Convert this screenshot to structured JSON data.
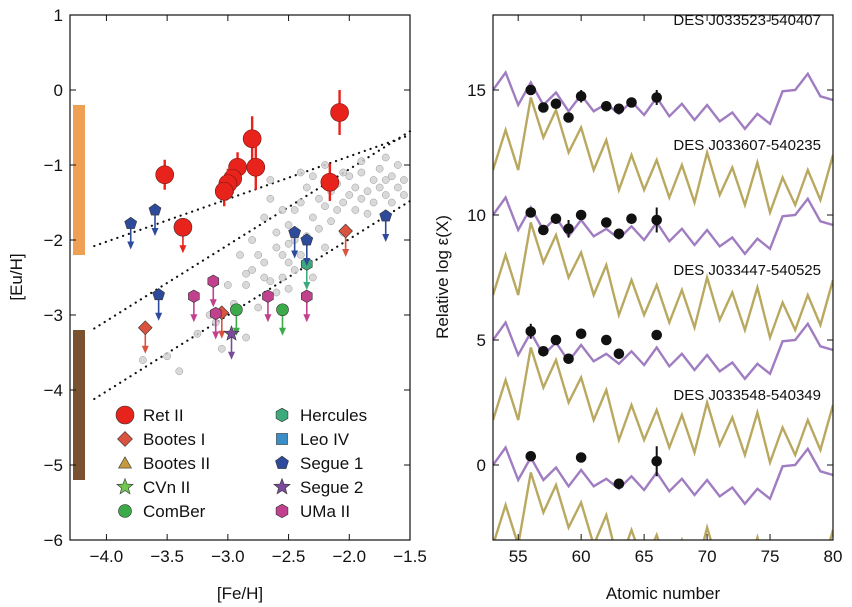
{
  "chart_data": [
    {
      "type": "scatter",
      "xlabel": "[Fe/H]",
      "ylabel": "[Eu/H]",
      "xlim": [
        -4.3,
        -1.5
      ],
      "ylim": [
        -6,
        1
      ],
      "xticks": [
        -4.0,
        -3.5,
        -3.0,
        -2.5,
        -2.0,
        -1.5
      ],
      "xtick_labels": [
        "−4.0",
        "−3.5",
        "−3.0",
        "−2.5",
        "−2.0",
        "−1.5"
      ],
      "yticks": [
        1,
        0,
        -1,
        -2,
        -3,
        -4,
        -5,
        -6
      ],
      "ytick_labels": [
        "1",
        "0",
        "−1",
        "−2",
        "−3",
        "−4",
        "−5",
        "−6"
      ],
      "legend": {
        "placement": "lower-left",
        "columns": [
          [
            "Ret II",
            "Bootes I",
            "Bootes II",
            "CVn II",
            "ComBer"
          ],
          [
            "Hercules",
            "Leo IV",
            "Segue 1",
            "Segue 2",
            "UMa II"
          ]
        ]
      },
      "colors": {
        "Ret II": "#e8231c",
        "Bootes I": "#d9533f",
        "Bootes II": "#c59a3e",
        "CVn II": "#6fc74f",
        "ComBer": "#3daa4a",
        "Hercules": "#3bab7c",
        "Leo IV": "#3b8fc9",
        "Segue 1": "#2e4a9b",
        "Segue 2": "#7a4b9a",
        "UMa II": "#c2418f",
        "halo": "#bdbdbd",
        "band_top": "#f0a055",
        "band_bottom": "#7a5230"
      },
      "bands": [
        {
          "y": [
            -2.2,
            -0.2
          ],
          "color": "#f0a055"
        },
        {
          "y": [
            -5.2,
            -3.2
          ],
          "color": "#7a5230"
        }
      ],
      "trend_lines": [
        {
          "x": [
            -4.1,
            -1.5
          ],
          "y": [
            -2.08,
            -0.6
          ]
        },
        {
          "x": [
            -4.1,
            -1.5
          ],
          "y": [
            -3.18,
            -0.55
          ]
        },
        {
          "x": [
            -4.1,
            -1.5
          ],
          "y": [
            -4.12,
            -1.48
          ]
        }
      ],
      "series": [
        {
          "name": "Ret II",
          "marker": "circle",
          "color": "#e8231c",
          "detections": [
            {
              "x": -2.08,
              "y": -0.3,
              "yerr": 0.3
            },
            {
              "x": -2.8,
              "y": -0.65,
              "yerr": 0.3
            },
            {
              "x": -2.77,
              "y": -1.03,
              "yerr": 0.3
            },
            {
              "x": -2.92,
              "y": -1.03,
              "yerr": 0.2
            },
            {
              "x": -2.96,
              "y": -1.18,
              "yerr": 0.2
            },
            {
              "x": -3.0,
              "y": -1.25,
              "yerr": 0.2
            },
            {
              "x": -3.03,
              "y": -1.35,
              "yerr": 0.2
            },
            {
              "x": -2.16,
              "y": -1.23,
              "yerr": 0.25
            },
            {
              "x": -3.52,
              "y": -1.13,
              "yerr": 0.2
            }
          ],
          "upper_limits": [
            {
              "x": -3.37,
              "y": -1.83
            }
          ]
        },
        {
          "name": "Bootes I",
          "marker": "diamond",
          "color": "#d9533f",
          "detections": [],
          "upper_limits": [
            {
              "x": -3.05,
              "y": -2.97
            },
            {
              "x": -3.68,
              "y": -3.17
            },
            {
              "x": -2.03,
              "y": -1.88
            }
          ]
        },
        {
          "name": "Bootes II",
          "marker": "triangle",
          "color": "#c59a3e",
          "detections": [],
          "upper_limits": []
        },
        {
          "name": "CVn II",
          "marker": "star",
          "color": "#6fc74f",
          "detections": [],
          "upper_limits": []
        },
        {
          "name": "ComBer",
          "marker": "circle",
          "color": "#3daa4a",
          "detections": [],
          "upper_limits": [
            {
              "x": -2.93,
              "y": -2.93
            },
            {
              "x": -2.55,
              "y": -2.93
            }
          ]
        },
        {
          "name": "Hercules",
          "marker": "hexagon",
          "color": "#3bab7c",
          "detections": [],
          "upper_limits": [
            {
              "x": -2.35,
              "y": -2.32
            }
          ]
        },
        {
          "name": "Leo IV",
          "marker": "square",
          "color": "#3b8fc9",
          "detections": [],
          "upper_limits": []
        },
        {
          "name": "Segue 1",
          "marker": "pentagon",
          "color": "#2e4a9b",
          "detections": [],
          "upper_limits": [
            {
              "x": -3.8,
              "y": -1.78
            },
            {
              "x": -3.6,
              "y": -1.6
            },
            {
              "x": -3.57,
              "y": -2.73
            },
            {
              "x": -2.45,
              "y": -1.9
            },
            {
              "x": -2.35,
              "y": -2.0
            },
            {
              "x": -1.7,
              "y": -1.68
            }
          ]
        },
        {
          "name": "Segue 2",
          "marker": "star",
          "color": "#7a4b9a",
          "detections": [],
          "upper_limits": [
            {
              "x": -2.97,
              "y": -3.25
            }
          ]
        },
        {
          "name": "UMa II",
          "marker": "hexagon",
          "color": "#c2418f",
          "detections": [],
          "upper_limits": [
            {
              "x": -3.28,
              "y": -2.75
            },
            {
              "x": -3.12,
              "y": -2.55
            },
            {
              "x": -3.1,
              "y": -2.98
            },
            {
              "x": -2.67,
              "y": -2.75
            },
            {
              "x": -2.35,
              "y": -2.75
            }
          ]
        },
        {
          "name": "",
          "marker": "circle",
          "color": "#bdbdbd",
          "points": [
            [
              -3.7,
              -3.6
            ],
            [
              -3.5,
              -3.55
            ],
            [
              -3.4,
              -3.75
            ],
            [
              -3.25,
              -3.25
            ],
            [
              -3.1,
              -3.1
            ],
            [
              -3.05,
              -3.45
            ],
            [
              -2.95,
              -2.85
            ],
            [
              -2.85,
              -2.6
            ],
            [
              -2.85,
              -3.3
            ],
            [
              -2.8,
              -2.4
            ],
            [
              -2.75,
              -2.2
            ],
            [
              -2.7,
              -1.7
            ],
            [
              -2.7,
              -2.3
            ],
            [
              -2.65,
              -2.55
            ],
            [
              -2.65,
              -1.45
            ],
            [
              -2.6,
              -2.1
            ],
            [
              -2.6,
              -1.9
            ],
            [
              -2.55,
              -2.5
            ],
            [
              -2.55,
              -1.6
            ],
            [
              -2.5,
              -2.3
            ],
            [
              -2.5,
              -1.8
            ],
            [
              -2.5,
              -2.05
            ],
            [
              -2.45,
              -2.4
            ],
            [
              -2.45,
              -1.6
            ],
            [
              -2.4,
              -2.2
            ],
            [
              -2.4,
              -1.5
            ],
            [
              -2.35,
              -1.95
            ],
            [
              -2.35,
              -1.3
            ],
            [
              -2.3,
              -2.5
            ],
            [
              -2.3,
              -1.7
            ],
            [
              -2.25,
              -1.85
            ],
            [
              -2.25,
              -1.45
            ],
            [
              -2.2,
              -1.55
            ],
            [
              -2.2,
              -2.1
            ],
            [
              -2.15,
              -1.35
            ],
            [
              -2.15,
              -1.75
            ],
            [
              -2.1,
              -1.6
            ],
            [
              -2.1,
              -1.25
            ],
            [
              -2.05,
              -1.5
            ],
            [
              -2.05,
              -1.9
            ],
            [
              -2.0,
              -1.4
            ],
            [
              -2.0,
              -1.15
            ],
            [
              -1.95,
              -1.6
            ],
            [
              -1.95,
              -1.3
            ],
            [
              -1.9,
              -1.45
            ],
            [
              -1.9,
              -1.1
            ],
            [
              -1.85,
              -1.35
            ],
            [
              -1.85,
              -1.65
            ],
            [
              -1.8,
              -1.2
            ],
            [
              -1.8,
              -1.5
            ],
            [
              -1.75,
              -1.3
            ],
            [
              -1.75,
              -1.05
            ],
            [
              -1.7,
              -1.4
            ],
            [
              -1.7,
              -1.2
            ],
            [
              -1.65,
              -1.15
            ],
            [
              -1.65,
              -1.5
            ],
            [
              -1.6,
              -1.3
            ],
            [
              -1.6,
              -1.0
            ],
            [
              -1.55,
              -1.2
            ],
            [
              -1.55,
              -1.4
            ],
            [
              -2.6,
              -2.7
            ],
            [
              -2.8,
              -2.0
            ],
            [
              -2.9,
              -2.2
            ],
            [
              -3.0,
              -2.6
            ],
            [
              -2.75,
              -2.9
            ],
            [
              -2.5,
              -2.65
            ],
            [
              -3.15,
              -3.0
            ],
            [
              -2.65,
              -1.2
            ],
            [
              -2.4,
              -1.1
            ],
            [
              -2.3,
              -1.15
            ],
            [
              -2.55,
              -2.2
            ],
            [
              -2.45,
              -2.0
            ],
            [
              -2.2,
              -1.0
            ],
            [
              -2.05,
              -1.1
            ],
            [
              -1.9,
              -0.95
            ],
            [
              -1.7,
              -0.9
            ],
            [
              -2.85,
              -2.45
            ],
            [
              -2.7,
              -2.5
            ]
          ]
        }
      ]
    },
    {
      "type": "line",
      "xlabel": "Atomic number",
      "ylabel": "Relative log ε(X)",
      "xlim": [
        53,
        80
      ],
      "ylim": [
        -3,
        18
      ],
      "xticks": [
        55,
        60,
        65,
        70,
        75,
        80
      ],
      "yticks": [
        0,
        5,
        10,
        15
      ],
      "line_colors": {
        "r-process": "#a07cc0",
        "s-process": "#b9a860",
        "stars": "#111111"
      },
      "r_process_pattern": [
        [
          53,
          0.0
        ],
        [
          54,
          0.7
        ],
        [
          55,
          -0.6
        ],
        [
          56,
          0.3
        ],
        [
          57,
          -0.6
        ],
        [
          58,
          -0.1
        ],
        [
          59,
          -0.85
        ],
        [
          60,
          -0.2
        ],
        [
          61,
          -0.85
        ],
        [
          62,
          -0.55
        ],
        [
          63,
          -0.95
        ],
        [
          64,
          -0.45
        ],
        [
          65,
          -1.0
        ],
        [
          66,
          -0.3
        ],
        [
          67,
          -1.05
        ],
        [
          68,
          -0.55
        ],
        [
          69,
          -1.2
        ],
        [
          70,
          -0.6
        ],
        [
          71,
          -1.25
        ],
        [
          72,
          -0.9
        ],
        [
          73,
          -1.55
        ],
        [
          74,
          -0.95
        ],
        [
          75,
          -1.35
        ],
        [
          76,
          -0.05
        ],
        [
          77,
          0.0
        ],
        [
          78,
          0.65
        ],
        [
          79,
          -0.25
        ],
        [
          80,
          -0.4
        ]
      ],
      "s_process_pattern": [
        [
          53,
          -3.2
        ],
        [
          54,
          -1.6
        ],
        [
          55,
          -3.2
        ],
        [
          56,
          -0.3
        ],
        [
          57,
          -1.9
        ],
        [
          58,
          -0.8
        ],
        [
          59,
          -2.5
        ],
        [
          60,
          -1.5
        ],
        [
          61,
          -3.2
        ],
        [
          62,
          -2.0
        ],
        [
          63,
          -4.0
        ],
        [
          64,
          -2.6
        ],
        [
          65,
          -4.0
        ],
        [
          66,
          -2.8
        ],
        [
          67,
          -4.3
        ],
        [
          68,
          -3.0
        ],
        [
          69,
          -4.5
        ],
        [
          70,
          -2.5
        ],
        [
          71,
          -4.2
        ],
        [
          72,
          -3.1
        ],
        [
          73,
          -4.6
        ],
        [
          74,
          -2.9
        ],
        [
          75,
          -4.9
        ],
        [
          76,
          -3.5
        ],
        [
          77,
          -4.6
        ],
        [
          78,
          -3.2
        ],
        [
          79,
          -4.4
        ],
        [
          80,
          -2.6
        ]
      ],
      "stars": [
        {
          "label": "DES J033523-540407",
          "offset": 15,
          "abundances": [
            [
              56,
              0.0,
              0.2
            ],
            [
              57,
              -0.7,
              0.2
            ],
            [
              58,
              -0.55,
              0.2
            ],
            [
              59,
              -1.1,
              0.2
            ],
            [
              60,
              -0.25,
              0.25
            ],
            [
              62,
              -0.65,
              0.2
            ],
            [
              63,
              -0.75,
              0.2
            ],
            [
              64,
              -0.5,
              0.2
            ],
            [
              66,
              -0.3,
              0.3
            ]
          ]
        },
        {
          "label": "DES J033607-540235",
          "offset": 10,
          "abundances": [
            [
              56,
              0.1,
              0.2
            ],
            [
              57,
              -0.6,
              0.2
            ],
            [
              58,
              -0.15,
              0.2
            ],
            [
              59,
              -0.55,
              0.35
            ],
            [
              60,
              0.0,
              0.2
            ],
            [
              62,
              -0.3,
              0.2
            ],
            [
              63,
              -0.75,
              0.2
            ],
            [
              64,
              -0.15,
              0.2
            ],
            [
              66,
              -0.2,
              0.5
            ]
          ]
        },
        {
          "label": "DES J033447-540525",
          "offset": 5,
          "abundances": [
            [
              56,
              0.35,
              0.3
            ],
            [
              57,
              -0.45,
              0.2
            ],
            [
              58,
              0.0,
              0.2
            ],
            [
              59,
              -0.75,
              0.2
            ],
            [
              60,
              0.25,
              0.2
            ],
            [
              62,
              0.0,
              0.2
            ],
            [
              63,
              -0.55,
              0.2
            ],
            [
              66,
              0.2,
              0.2
            ]
          ]
        },
        {
          "label": "DES J033548-540349",
          "offset": 0,
          "abundances": [
            [
              56,
              0.35,
              0.2
            ],
            [
              60,
              0.3,
              0.2
            ],
            [
              63,
              -0.75,
              0.2
            ],
            [
              66,
              0.15,
              0.6
            ]
          ]
        }
      ]
    }
  ]
}
